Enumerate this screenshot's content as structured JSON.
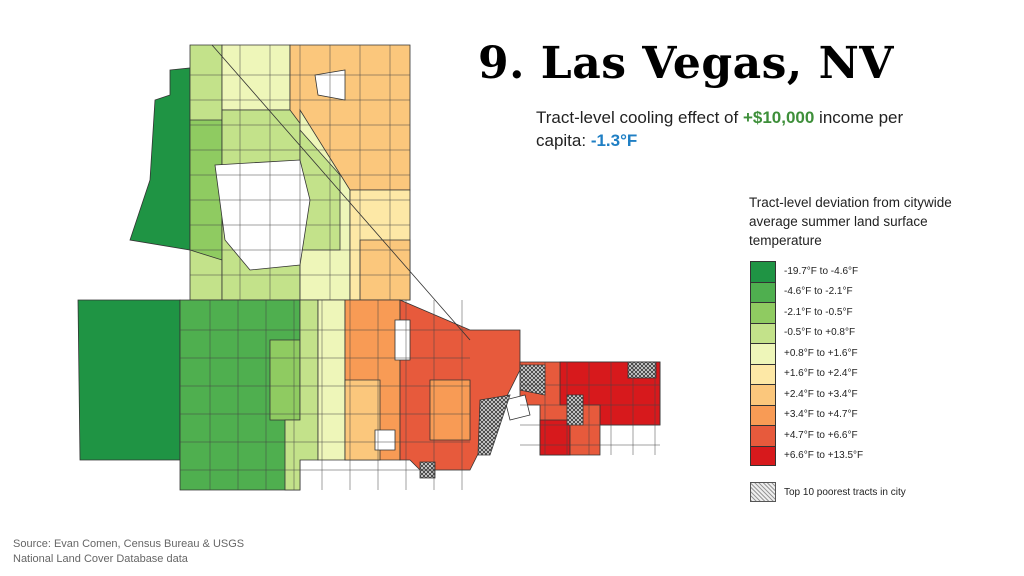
{
  "title": "9. Las Vegas, NV",
  "subtitle": {
    "prefix": "Tract-level cooling effect of ",
    "income": "+$10,000",
    "middle": " income per capita: ",
    "effect": "-1.3°F",
    "income_color": "#3e8f3a",
    "effect_color": "#1f7fc4"
  },
  "legend": {
    "title": "Tract-level deviation from citywide average summer land surface temperature",
    "items": [
      {
        "label": "-19.7°F to -4.6°F",
        "color": "#1f9444"
      },
      {
        "label": "-4.6°F to -2.1°F",
        "color": "#4faf4f"
      },
      {
        "label": "-2.1°F to -0.5°F",
        "color": "#8fcb61"
      },
      {
        "label": "-0.5°F to +0.8°F",
        "color": "#c3e28a"
      },
      {
        "label": "+0.8°F to +1.6°F",
        "color": "#eef6b9"
      },
      {
        "label": "+1.6°F to +2.4°F",
        "color": "#fde8a6"
      },
      {
        "label": "+2.4°F to +3.4°F",
        "color": "#fbc77c"
      },
      {
        "label": "+3.4°F to +4.7°F",
        "color": "#f89b55"
      },
      {
        "label": "+4.7°F to +6.6°F",
        "color": "#e75a3c"
      },
      {
        "label": "+6.6°F to +13.5°F",
        "color": "#d7191c"
      }
    ],
    "hatch_label": "Top 10 poorest tracts in city"
  },
  "source": {
    "line1": "Source: Evan Comen, Census Bureau & USGS",
    "line2": "National Land Cover Database data"
  }
}
